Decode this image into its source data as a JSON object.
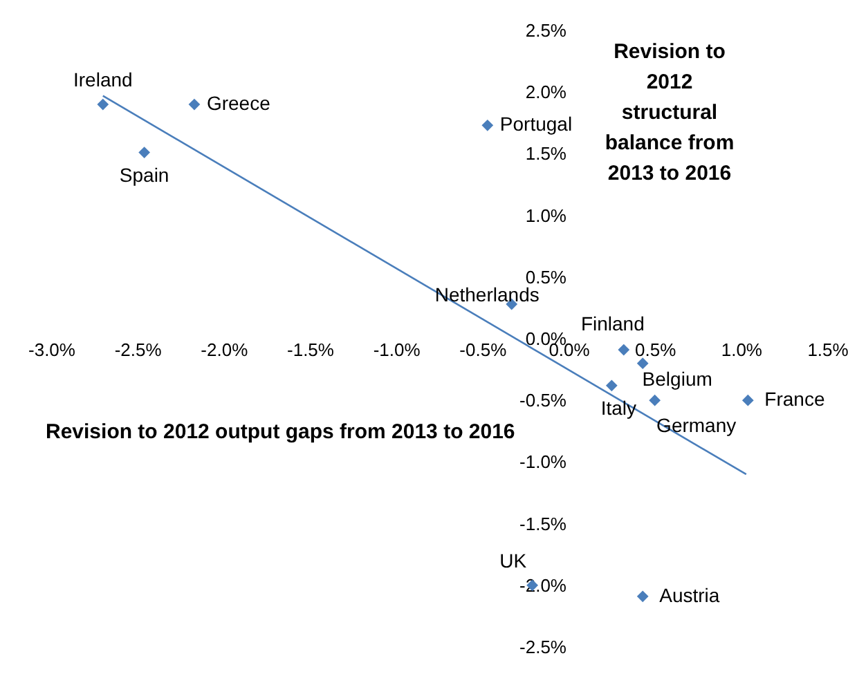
{
  "chart_data": {
    "type": "scatter",
    "xlabel": "Revision to 2012 output gaps from 2013 to 2016",
    "ylabel": "Revision to 2012 structural balance from 2013 to 2016",
    "xlim": [
      -3.0,
      1.5
    ],
    "xticks": [
      {
        "value": -3.0,
        "label": "-3.0%"
      },
      {
        "value": -2.5,
        "label": "-2.5%"
      },
      {
        "value": -2.0,
        "label": "-2.0%"
      },
      {
        "value": -1.5,
        "label": "-1.5%"
      },
      {
        "value": -1.0,
        "label": "-1.0%"
      },
      {
        "value": -0.5,
        "label": "-0.5%"
      },
      {
        "value": 0.0,
        "label": "0.0%"
      },
      {
        "value": 0.5,
        "label": "0.5%"
      },
      {
        "value": 1.0,
        "label": "1.0%"
      },
      {
        "value": 1.5,
        "label": "1.5%"
      }
    ],
    "ylim": [
      -2.5,
      2.5
    ],
    "yticks": [
      {
        "value": -2.5,
        "label": "-2.5%"
      },
      {
        "value": -2.0,
        "label": "-2.0%"
      },
      {
        "value": -1.5,
        "label": "-1.5%"
      },
      {
        "value": -1.0,
        "label": "-1.0%"
      },
      {
        "value": -0.5,
        "label": "-0.5%"
      },
      {
        "value": 0.0,
        "label": "0.0%"
      },
      {
        "value": 0.5,
        "label": "0.5%"
      },
      {
        "value": 1.0,
        "label": "1.0%"
      },
      {
        "value": 1.5,
        "label": "1.5%"
      },
      {
        "value": 2.0,
        "label": "2.0%"
      },
      {
        "value": 2.5,
        "label": "2.5%"
      }
    ],
    "grid": false,
    "marker": "diamond",
    "series": [
      {
        "type": "scatter",
        "color": "#4a7ebb",
        "x": [
          -2.7,
          -2.17,
          -2.46,
          -0.47,
          -0.33,
          0.32,
          0.43,
          0.25,
          0.5,
          1.04,
          -0.21,
          0.43
        ],
        "values": [
          1.9,
          1.9,
          1.51,
          1.73,
          0.28,
          -0.09,
          -0.2,
          -0.38,
          -0.5,
          -0.5,
          -2.0,
          -2.09
        ]
      },
      {
        "type": "line",
        "color": "#4a7ebb",
        "line_style": "solid",
        "marker": "none",
        "x": [
          -2.7,
          1.03
        ],
        "values": [
          1.97,
          -1.1
        ]
      }
    ],
    "annotations": [
      {
        "text": "Ireland",
        "x": -2.7,
        "y": 1.9
      },
      {
        "text": "Greece",
        "x": -2.17,
        "y": 1.9
      },
      {
        "text": "Spain",
        "x": -2.46,
        "y": 1.51
      },
      {
        "text": "Portugal",
        "x": -0.47,
        "y": 1.73
      },
      {
        "text": "Netherlands",
        "x": -0.33,
        "y": 0.28
      },
      {
        "text": "Finland",
        "x": 0.32,
        "y": -0.09
      },
      {
        "text": "Belgium",
        "x": 0.43,
        "y": -0.2
      },
      {
        "text": "Italy",
        "x": 0.25,
        "y": -0.38
      },
      {
        "text": "Germany",
        "x": 0.5,
        "y": -0.5
      },
      {
        "text": "France",
        "x": 1.04,
        "y": -0.5
      },
      {
        "text": "UK",
        "x": -0.21,
        "y": -2.0
      },
      {
        "text": "Austria",
        "x": 0.43,
        "y": -2.09
      }
    ]
  }
}
